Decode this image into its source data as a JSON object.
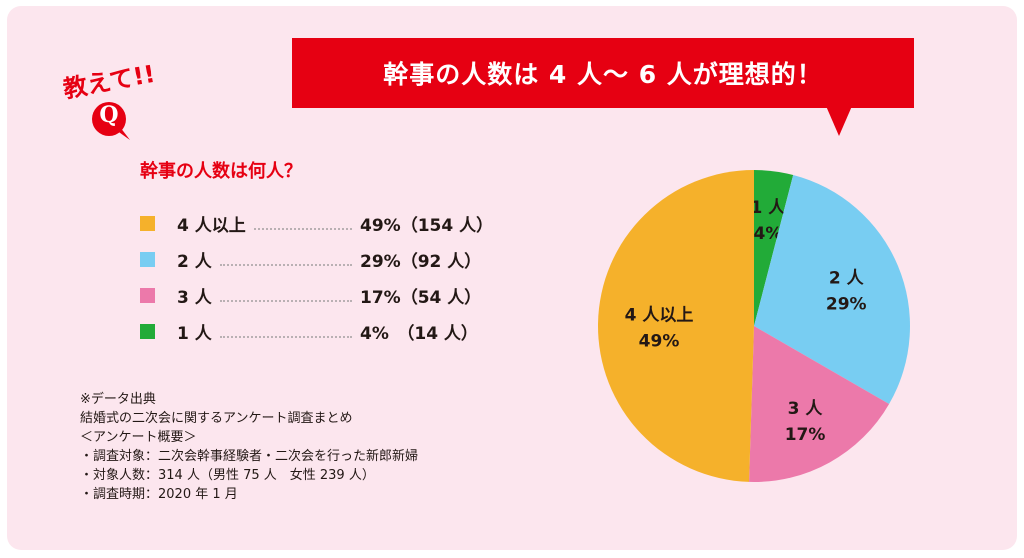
{
  "headline": "幹事の人数は 4 人〜 6 人が理想的！",
  "badge": {
    "text": "教えて!!",
    "q": "Q"
  },
  "question": "幹事の人数は何人？",
  "colors": {
    "card": "#fce6ee",
    "accent": "#e60012",
    "orange": "#f5b12b",
    "blue": "#78cdf2",
    "pink": "#ec79aa",
    "green": "#22ab38"
  },
  "legend": [
    {
      "label": "4 人以上",
      "value": "49%（154 人）"
    },
    {
      "label": "2 人",
      "value": "29%（92 人）"
    },
    {
      "label": "3 人",
      "value": "17%（54 人）"
    },
    {
      "label": "1 人",
      "value": "4%　（14 人）"
    }
  ],
  "notes": [
    "※データ出典",
    "結婚式の二次会に関するアンケート調査まとめ",
    "＜アンケート概要＞",
    "・調査対象：二次会幹事経験者・二次会を行った新郎新婦",
    "・対象人数：314 人（男性 75 人　女性 239 人）",
    "・調査時期：2020 年 1 月"
  ],
  "chart_data": {
    "type": "pie",
    "title": "幹事の人数は何人？",
    "start": "12 o'clock, clockwise",
    "slices": [
      {
        "label": "1 人",
        "percent_label": "4%",
        "value": 4,
        "count": 14,
        "color": "#22ab38"
      },
      {
        "label": "2 人",
        "percent_label": "29%",
        "value": 29,
        "count": 92,
        "color": "#78cdf2"
      },
      {
        "label": "3 人",
        "percent_label": "17%",
        "value": 17,
        "count": 54,
        "color": "#ec79aa"
      },
      {
        "label": "4 人以上",
        "percent_label": "49%",
        "value": 49,
        "count": 154,
        "color": "#f5b12b"
      }
    ]
  }
}
